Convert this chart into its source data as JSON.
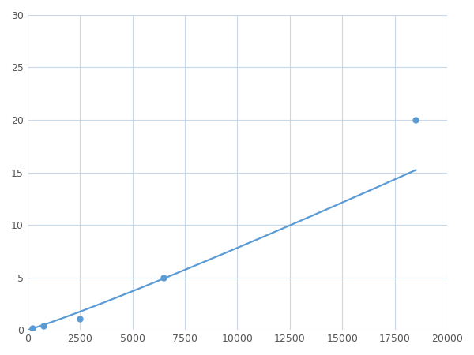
{
  "x": [
    250,
    750,
    2500,
    6500,
    18500
  ],
  "y": [
    0.2,
    0.4,
    1.1,
    5.0,
    20.0
  ],
  "line_color": "#5b9bd5",
  "marker_color": "#5b9bd5",
  "marker_size": 5,
  "line_width": 1.6,
  "xlim": [
    0,
    20000
  ],
  "ylim": [
    0,
    30
  ],
  "xticks": [
    0,
    2500,
    5000,
    7500,
    10000,
    12500,
    15000,
    17500,
    20000
  ],
  "yticks": [
    0,
    5,
    10,
    15,
    20,
    25,
    30
  ],
  "grid_color": "#c8d8e8",
  "background_color": "#ffffff",
  "figure_bg": "#ffffff"
}
